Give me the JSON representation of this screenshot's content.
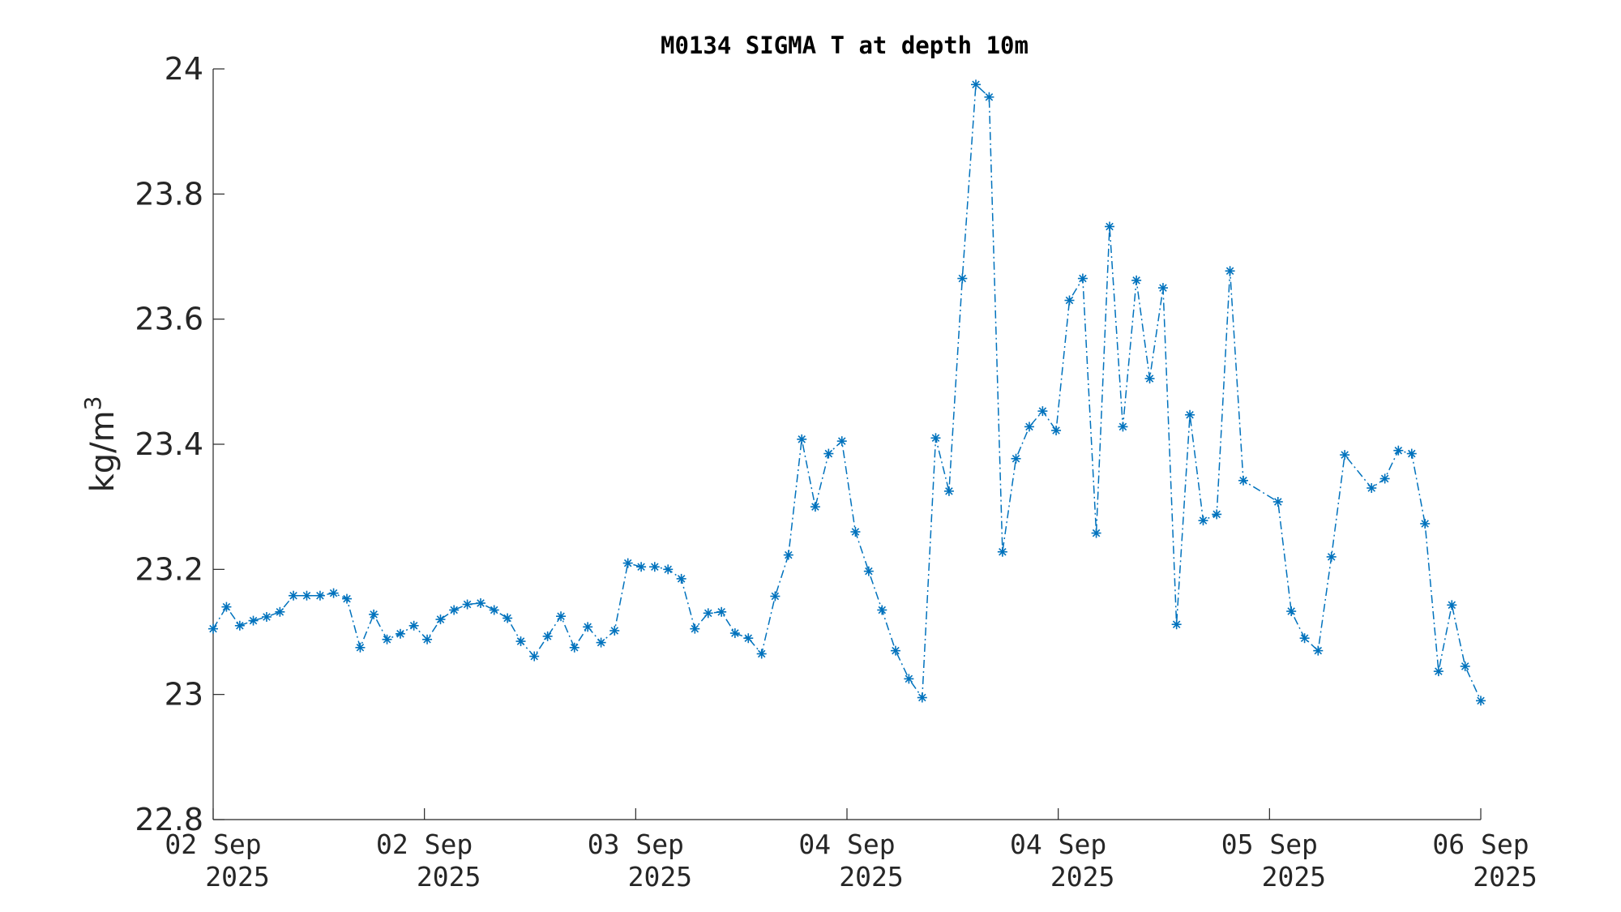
{
  "chart_data": {
    "type": "line",
    "title": "M0134 SIGMA T at depth 10m",
    "xlabel": "",
    "ylabel_base": "kg/m",
    "ylabel_sup": "3",
    "ylim": [
      22.8,
      24.0
    ],
    "y_ticks": [
      "22.8",
      "23",
      "23.2",
      "23.4",
      "23.6",
      "23.8",
      "24"
    ],
    "x_ticks": [
      {
        "line1": "02 Sep",
        "line2": "2025"
      },
      {
        "line1": "02 Sep",
        "line2": "2025"
      },
      {
        "line1": "03 Sep",
        "line2": "2025"
      },
      {
        "line1": "04 Sep",
        "line2": "2025"
      },
      {
        "line1": "04 Sep",
        "line2": "2025"
      },
      {
        "line1": "05 Sep",
        "line2": "2025"
      },
      {
        "line1": "06 Sep",
        "line2": "2025"
      }
    ],
    "series_color": "#0072bd",
    "marker": "asterisk",
    "line_style": "dash-dot",
    "grid": false,
    "series": [
      {
        "name": "",
        "x": [
          0.0,
          0.063,
          0.126,
          0.19,
          0.253,
          0.316,
          0.38,
          0.443,
          0.506,
          0.57,
          0.633,
          0.696,
          0.76,
          0.823,
          0.886,
          0.95,
          1.013,
          1.076,
          1.14,
          1.203,
          1.266,
          1.33,
          1.393,
          1.456,
          1.52,
          1.583,
          1.646,
          1.71,
          1.773,
          1.836,
          1.9,
          1.963,
          2.026,
          2.09,
          2.153,
          2.216,
          2.28,
          2.343,
          2.406,
          2.47,
          2.533,
          2.596,
          2.66,
          2.723,
          2.786,
          2.85,
          2.913,
          2.976,
          3.04,
          3.103,
          3.166,
          3.23,
          3.293,
          3.356,
          3.42,
          3.483,
          3.546,
          3.61,
          3.673,
          3.736,
          3.8,
          3.863,
          3.926,
          3.99,
          4.053,
          4.116,
          4.18,
          4.243,
          4.306,
          4.37,
          4.433,
          4.496,
          4.56,
          4.623,
          4.686,
          4.75,
          4.813,
          4.876,
          5.04,
          5.103,
          5.166,
          5.23,
          5.293,
          5.356,
          5.483,
          5.546,
          5.61,
          5.673,
          5.736,
          5.8,
          5.863,
          5.926,
          6.0
        ],
        "y": [
          23.105,
          23.14,
          23.11,
          23.118,
          23.124,
          23.132,
          23.158,
          23.158,
          23.158,
          23.162,
          23.153,
          23.075,
          23.128,
          23.088,
          23.097,
          23.11,
          23.088,
          23.12,
          23.135,
          23.144,
          23.146,
          23.135,
          23.122,
          23.085,
          23.061,
          23.093,
          23.125,
          23.075,
          23.108,
          23.083,
          23.102,
          23.21,
          23.204,
          23.204,
          23.2,
          23.185,
          23.105,
          23.13,
          23.132,
          23.098,
          23.09,
          23.065,
          23.157,
          23.223,
          23.408,
          23.3,
          23.385,
          23.405,
          23.26,
          23.197,
          23.135,
          23.07,
          23.025,
          22.995,
          23.41,
          23.325,
          23.665,
          23.975,
          23.955,
          23.228,
          23.377,
          23.428,
          23.453,
          23.422,
          23.63,
          23.665,
          23.258,
          23.748,
          23.428,
          23.662,
          23.505,
          23.65,
          23.112,
          23.447,
          23.278,
          23.288,
          23.677,
          23.342,
          23.308,
          23.133,
          23.09,
          23.07,
          23.22,
          23.383,
          23.33,
          23.345,
          23.39,
          23.385,
          23.273,
          23.037,
          23.143,
          23.045,
          22.99
        ]
      }
    ]
  }
}
